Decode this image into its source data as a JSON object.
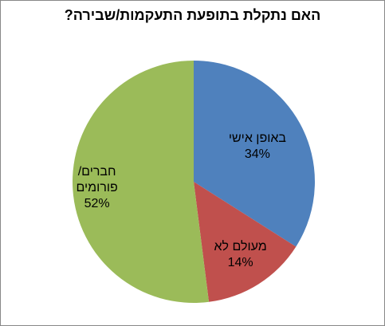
{
  "chart_data": {
    "type": "pie",
    "title": "האם נתקלת בתופעת התעקמות/שבירה?",
    "categories": [
      "באופן אישי",
      "מעולם לא",
      "חברים/\nפורומים"
    ],
    "values": [
      34,
      14,
      52
    ],
    "value_labels": [
      "34%",
      "14%",
      "52%"
    ],
    "colors": [
      "#4f81bd",
      "#c0504d",
      "#9bbb59"
    ]
  }
}
